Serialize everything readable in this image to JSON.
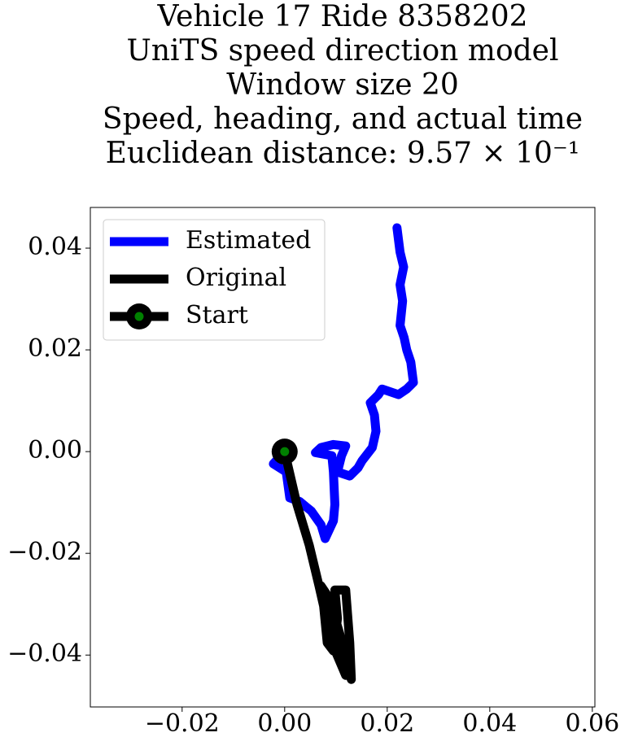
{
  "chart_data": {
    "type": "line",
    "title": [
      "Vehicle 17 Ride 8358202",
      "UniTS speed direction model",
      "Window size 20",
      "Speed, heading, and actual time",
      "Euclidean distance: 9.57 × 10⁻¹"
    ],
    "xlim": [
      -0.0379,
      0.0605
    ],
    "ylim": [
      -0.0502,
      0.048
    ],
    "xticks": [
      {
        "value": -0.02,
        "label": "−0.02"
      },
      {
        "value": 0,
        "label": "0.00"
      },
      0.02,
      0.04,
      0.06
    ],
    "yticks": [
      {
        "value": -0.04,
        "label": "−0.04"
      },
      {
        "value": -0.02,
        "label": "−0.02"
      },
      {
        "value": 0,
        "label": "0.00"
      },
      0.02,
      0.04
    ],
    "legend": "upper left",
    "series": [
      {
        "name": "Estimated",
        "color": "#0000ff",
        "x": [
          0,
          -0.0022,
          0.0003,
          0.001,
          0.0029,
          0.0052,
          0.0071,
          0.0079,
          0.0095,
          0.0098,
          0.0095,
          0.0092,
          0.006,
          0.0071,
          0.0095,
          0.0119,
          0.0111,
          0.0103,
          0.0127,
          0.0143,
          0.0151,
          0.0171,
          0.0178,
          0.0175,
          0.0167,
          0.0183,
          0.019,
          0.0222,
          0.0238,
          0.0251,
          0.0246,
          0.0238,
          0.0233,
          0.0225,
          0.023,
          0.0225,
          0.0232,
          0.0225,
          0.0219
        ],
        "y": [
          0,
          -0.0024,
          -0.004,
          -0.0091,
          -0.0098,
          -0.0117,
          -0.0144,
          -0.0171,
          -0.0136,
          -0.0104,
          -0.004,
          -0.0008,
          -0.0002,
          0.0008,
          0.0014,
          0.0011,
          -0.0008,
          -0.004,
          -0.0048,
          -0.0032,
          -0.0018,
          0.0008,
          0.004,
          0.0072,
          0.0096,
          0.0112,
          0.0123,
          0.0112,
          0.0123,
          0.0136,
          0.0176,
          0.02,
          0.0224,
          0.0248,
          0.0296,
          0.0328,
          0.0363,
          0.0392,
          0.044
        ]
      },
      {
        "name": "Original",
        "color": "#000000",
        "x": [
          0,
          0.0024,
          0.0048,
          0.0067,
          0.0076,
          0.0083,
          0.0095,
          0.0103,
          0.0098,
          0.0119,
          0.0127,
          0.013,
          0.0119,
          0.0108,
          0.0087,
          0.0071,
          0.0079,
          0.0092,
          0.0119
        ],
        "y": [
          0,
          -0.0104,
          -0.0184,
          -0.0264,
          -0.0304,
          -0.0376,
          -0.0392,
          -0.0328,
          -0.0272,
          -0.0272,
          -0.0376,
          -0.0448,
          -0.0416,
          -0.036,
          -0.0288,
          -0.0264,
          -0.0296,
          -0.0376,
          -0.044
        ]
      },
      {
        "name": "Start",
        "color": "#000000",
        "marker_color": "#008000",
        "x": [
          0
        ],
        "y": [
          0
        ]
      }
    ]
  }
}
